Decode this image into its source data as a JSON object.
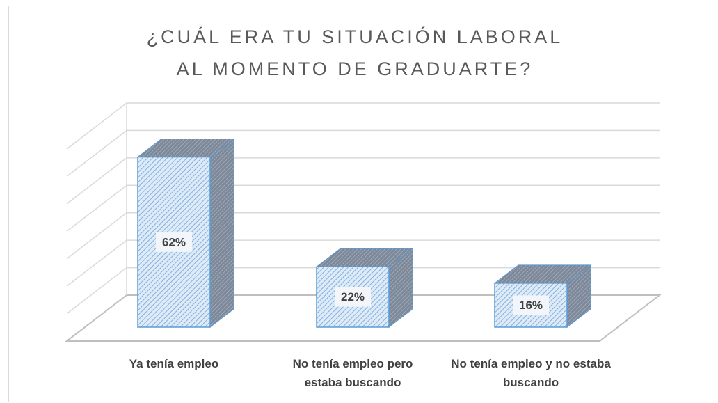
{
  "chart_data": {
    "type": "bar3d",
    "title": "¿CUÁL ERA TU SITUACIÓN LABORAL AL MOMENTO DE GRADUARTE?",
    "categories": [
      "Ya tenía empleo",
      "No tenía empleo pero estaba buscando",
      "No tenía empleo y no estaba buscando"
    ],
    "values": [
      62,
      22,
      16
    ],
    "value_labels": [
      "62%",
      "22%",
      "16%"
    ],
    "color": "#5b9bd5",
    "ylim": [
      0,
      70
    ],
    "yticks": [
      0,
      10,
      20,
      30,
      40,
      50,
      60,
      70
    ],
    "grid": true
  }
}
